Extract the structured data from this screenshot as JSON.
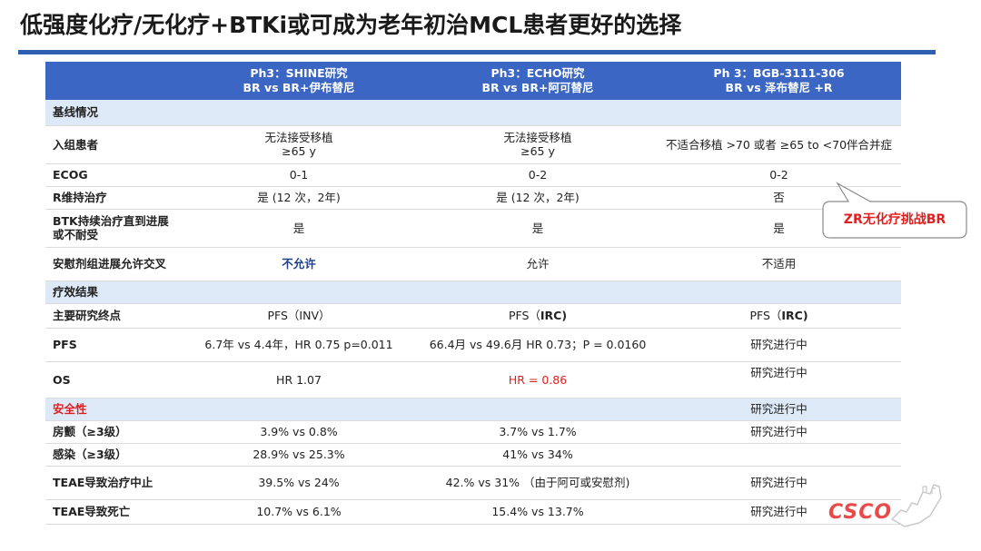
{
  "title": "低强度化疗/无化疗+BTKi或可成为老年初治MCL患者更好的选择",
  "header": {
    "col1_l1": "Ph3：SHINE研究",
    "col1_l2": "BR vs BR+伊布替尼",
    "col2_l1": "Ph3：ECHO研究",
    "col2_l2": "BR vs BR+阿可替尼",
    "col3_l1": "Ph 3：BGB-3111-306",
    "col3_l2": "BR vs 泽布替尼 +R"
  },
  "rows": {
    "baseline": "基线情况",
    "enroll": {
      "label": "入组患者",
      "c1_l1": "无法接受移植",
      "c1_l2": "≥65 y",
      "c2_l1": "无法接受移植",
      "c2_l2": "≥65 y",
      "c3": "不适合移植 >70 或者 ≥65 to <70伴合并症"
    },
    "ecog": {
      "label": "ECOG",
      "c1": "0-1",
      "c2": "0-2",
      "c3": "0-2"
    },
    "rmaint": {
      "label": "R维持治疗",
      "c1": "是 (12 次，2年)",
      "c2": "是 (12 次，2年)",
      "c3": "否"
    },
    "btk": {
      "label": "BTK持续治疗直到进展或不耐受",
      "c1": "是",
      "c2": "是",
      "c3": "是"
    },
    "crossover": {
      "label": "安慰剂组进展允许交叉",
      "c1": "不允许",
      "c2": "允许",
      "c3": "不适用"
    },
    "efficacy": "疗效结果",
    "endpoint": {
      "label": "主要研究终点",
      "c1": "PFS（INV）",
      "c2_a": "PFS（",
      "c2_b": "IRC",
      "c2_c": ")",
      "c3_a": "PFS（",
      "c3_b": "IRC",
      "c3_c": ")"
    },
    "pfs": {
      "label": "PFS",
      "c1": "6.7年 vs 4.4年，HR 0.75 p=0.011",
      "c2": "66.4月 vs 49.6月 HR 0.73；P = 0.0160",
      "c3": "研究进行中"
    },
    "os": {
      "label": "OS",
      "c1": "HR 1.07",
      "c2": "HR = 0.86",
      "c3": "研究进行中"
    },
    "safety": {
      "label": "安全性",
      "c3": "研究进行中"
    },
    "af": {
      "label": "房颤（≥3级）",
      "c1": "3.9% vs 0.8%",
      "c2": "3.7% vs 1.7%",
      "c3": "研究进行中"
    },
    "infect": {
      "label": "感染（≥3级）",
      "c1": "28.9% vs 25.3%",
      "c2": "41% vs 34%"
    },
    "teae_stop": {
      "label": "TEAE导致治疗中止",
      "c1": "39.5% vs 24%",
      "c2": "42.% vs 31% （由于阿可或安慰剂)",
      "c3": "研究进行中"
    },
    "teae_death": {
      "label": "TEAE导致死亡",
      "c1": "10.7% vs 6.1%",
      "c2": "15.4% vs 13.7%",
      "c3": "研究进行中"
    }
  },
  "callout": "ZR无化疗挑战BR",
  "logo": "CSCO",
  "colors": {
    "header": "#3b66c4",
    "section": "#dde9f6",
    "red": "#e02020",
    "title_rule": "#2f5fb3"
  }
}
